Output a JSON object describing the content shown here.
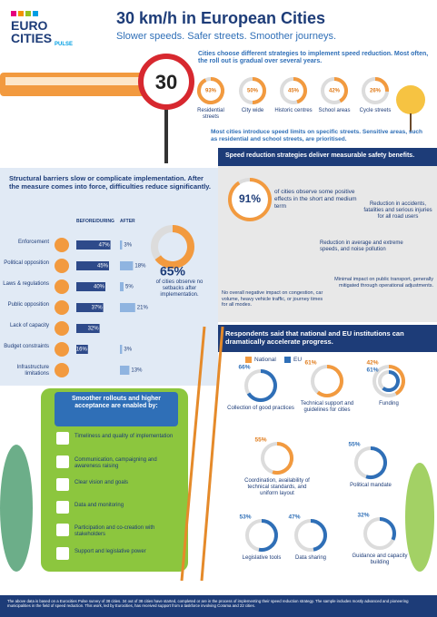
{
  "header": {
    "logo": [
      "EURO",
      "CITIES",
      "PULSE"
    ],
    "title": "30 km/h in European Cities",
    "subtitle": "Slower speeds. Safer streets. Smoother journeys."
  },
  "sign": "30",
  "intro": "Cities choose different strategies to implement speed reduction. Most often, the roll out is gradual over several years.",
  "areas": [
    {
      "label": "Residential streets",
      "pct": {
        "value": 93,
        "label": "93%"
      }
    },
    {
      "label": "City wide",
      "pct": {
        "value": 50,
        "label": "50%"
      }
    },
    {
      "label": "Historic centres",
      "pct": {
        "value": 45,
        "label": "45%"
      }
    },
    {
      "label": "School areas",
      "pct": {
        "value": 42,
        "label": "42%"
      }
    },
    {
      "label": "Cycle streets",
      "pct": {
        "value": 26,
        "label": "26%"
      }
    }
  ],
  "areas_note": "Most cities introduce speed limits on specific streets. Sensitive areas, such as residential and school streets, are prioritised.",
  "barriers": {
    "title": "Structural barriers slow or complicate implementation. After the measure comes into force, difficulties reduce significantly.",
    "before_header": "BEFORE/DURING",
    "after_header": "AFTER",
    "rows": [
      {
        "label": "Enforcement",
        "before": {
          "value": 47,
          "label": "47%"
        },
        "after": {
          "value": 3,
          "label": "3%"
        }
      },
      {
        "label": "Political opposition",
        "before": {
          "value": 45,
          "label": "45%"
        },
        "after": {
          "value": 18,
          "label": "18%"
        }
      },
      {
        "label": "Laws & regulations",
        "before": {
          "value": 40,
          "label": "40%"
        },
        "after": {
          "value": 5,
          "label": "5%"
        }
      },
      {
        "label": "Public opposition",
        "before": {
          "value": 37,
          "label": "37%"
        },
        "after": {
          "value": 21,
          "label": "21%"
        }
      },
      {
        "label": "Lack of capacity",
        "before": {
          "value": 32,
          "label": "32%"
        },
        "after": null
      },
      {
        "label": "Budget constraints",
        "before": {
          "value": 16,
          "label": "16%"
        },
        "after": {
          "value": 3,
          "label": "3%"
        }
      },
      {
        "label": "Infrastructure limitations",
        "before": null,
        "after": {
          "value": 13,
          "label": "13%"
        }
      }
    ]
  },
  "no_setbacks": {
    "pct": {
      "value": 65,
      "label": "65%"
    },
    "text": "of cities observe no setbacks after implementation."
  },
  "safety": {
    "title": "Speed reduction strategies deliver measurable safety benefits.",
    "pct": {
      "value": 91,
      "label": "91%"
    },
    "pct_text": "of cities observe some positive effects in the short and medium term",
    "accidents": "Reduction in accidents, fatalities and serious injuries for all road users",
    "speeds": "Reduction in average and extreme speeds, and noise pollution",
    "transport": "Minimal impact on public transport, generally mitigated through operational adjustments.",
    "congestion": "No overall negative impact on congestion, car volume, heavy vehicle traffic, or journey times for all modes."
  },
  "enablers": {
    "title": "Smoother rollouts and higher acceptance are enabled by:",
    "items": [
      "Timeliness and quality of implementation",
      "Communication, campaigning and awareness raising",
      "Clear vision and goals",
      "Data and monitoring",
      "Participation and co-creation with stakeholders",
      "Support and legislative power"
    ]
  },
  "support": {
    "title": "Respondents said that national and EU institutions can dramatically accelerate progress.",
    "legend": {
      "national": "National",
      "eu": "EU"
    },
    "items": [
      {
        "label": "Collection of good practices",
        "national": null,
        "eu": {
          "value": 66,
          "label": "66%"
        }
      },
      {
        "label": "Technical support and guidelines for cities",
        "national": {
          "value": 61,
          "label": "61%"
        },
        "eu": null
      },
      {
        "label": "Funding",
        "national": {
          "value": 42,
          "label": "42%"
        },
        "eu": {
          "value": 61,
          "label": "61%"
        }
      },
      {
        "label": "Coordination, availability of technical standards, and uniform layout",
        "national": {
          "value": 55,
          "label": "55%"
        },
        "eu": null
      },
      {
        "label": "Political mandate",
        "national": null,
        "eu": {
          "value": 55,
          "label": "55%"
        }
      },
      {
        "label": "Legislative tools",
        "national": null,
        "eu": {
          "value": 53,
          "label": "53%"
        }
      },
      {
        "label": "Data sharing",
        "national": null,
        "eu": {
          "value": 47,
          "label": "47%"
        }
      },
      {
        "label": "Guidance and capacity building",
        "national": null,
        "eu": {
          "value": 32,
          "label": "32%"
        }
      }
    ]
  },
  "footer": "The above data is based on a Eurocities Pulse survey of 38 cities. 34 out of 38 cities have started, completed or are in the process of implementing their speed reduction strategy. The sample includes mostly advanced and pioneering municipalities in the field of speed reduction. This work, led by Eurocities, has received support from a taskforce involving Corama and 22 cities."
}
